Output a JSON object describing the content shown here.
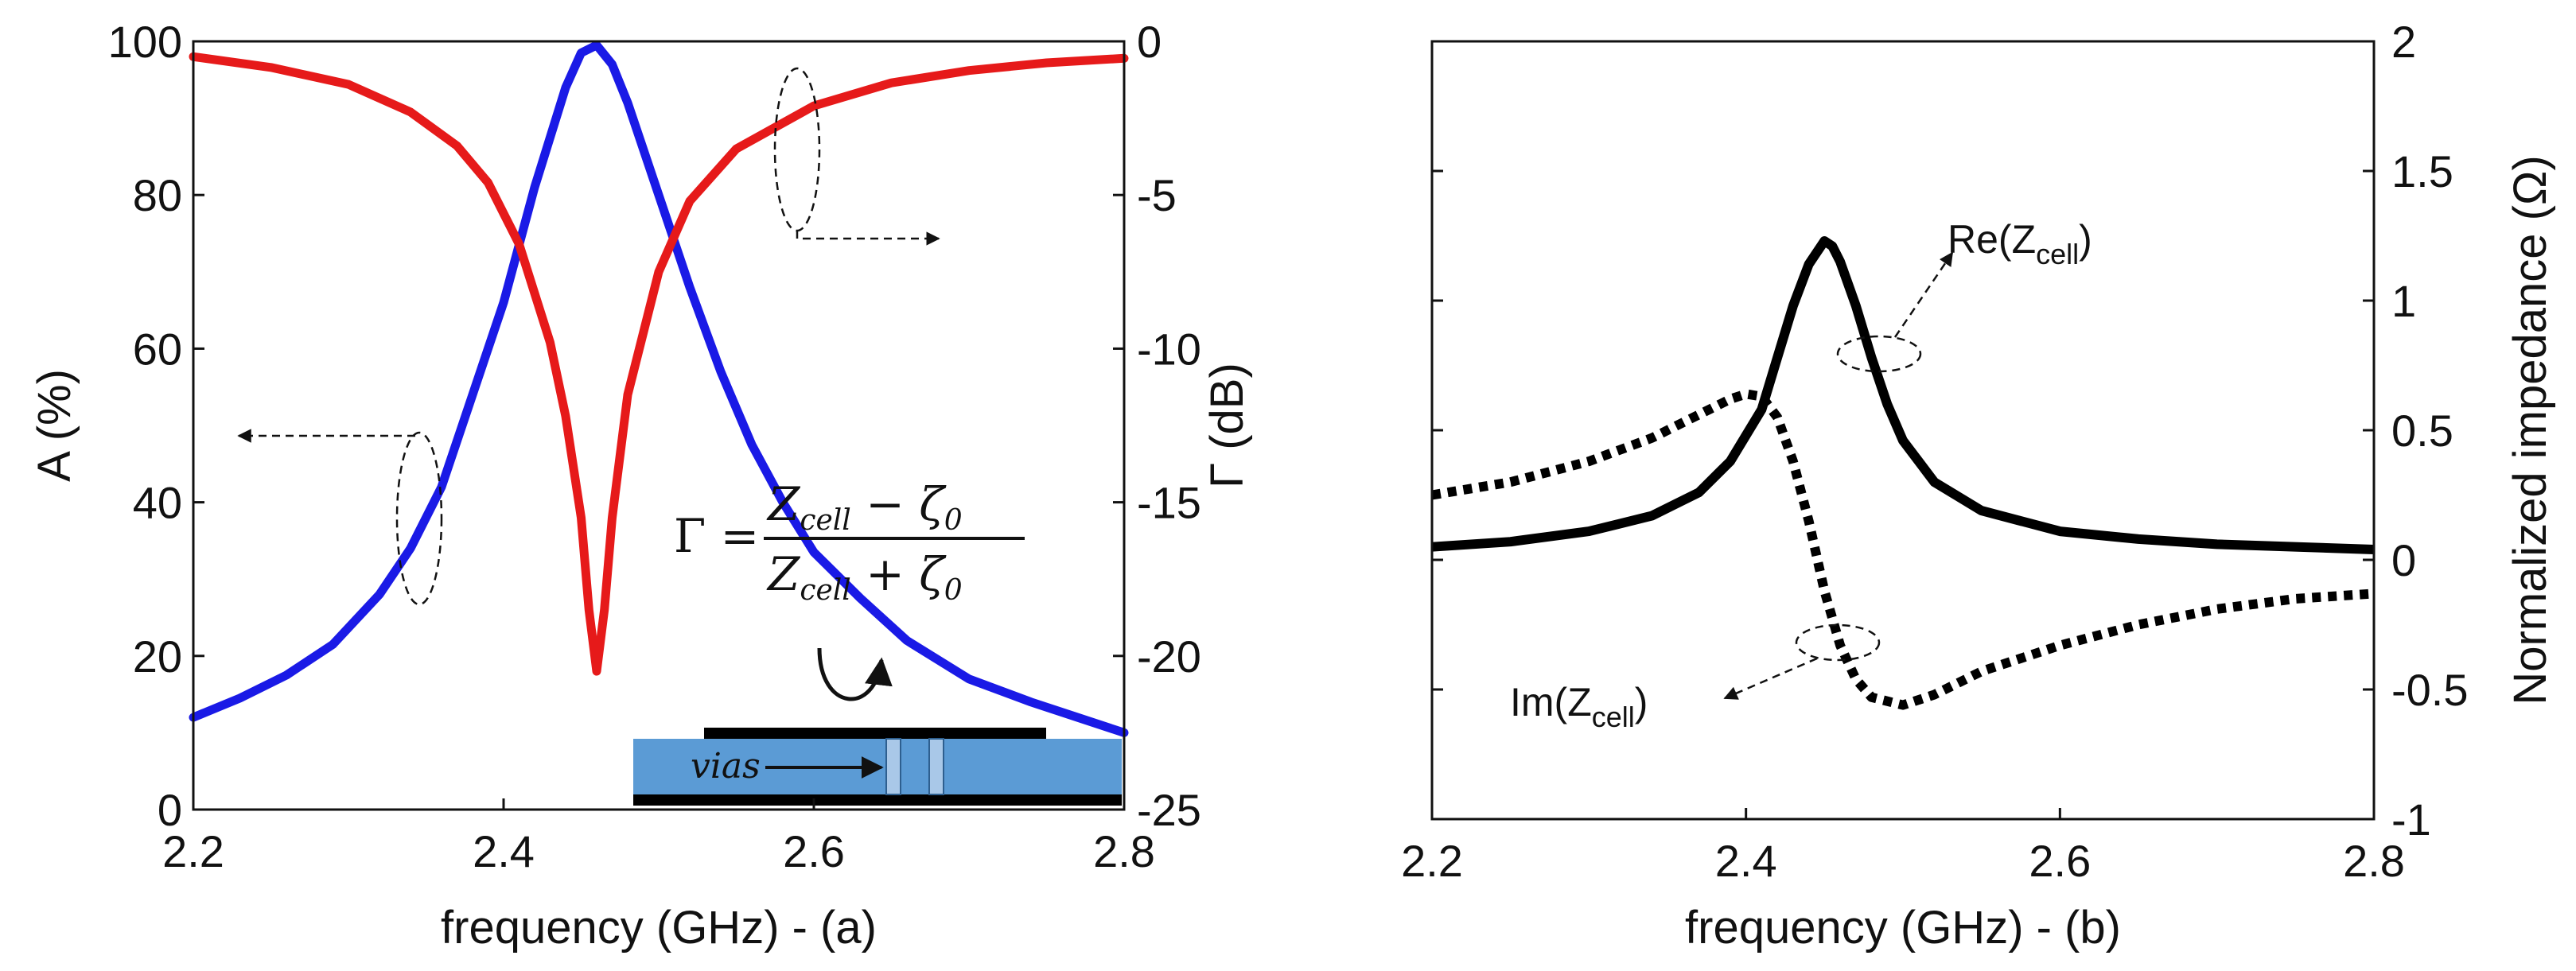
{
  "chart_data": [
    {
      "type": "line",
      "panel_label": "(a)",
      "xlabel": "frequency (GHz)  - (a)",
      "ylabel_left": "A (%)",
      "ylabel_right": "Γ (dB)",
      "xlim": [
        2.2,
        2.8
      ],
      "ylim_left": [
        0,
        100
      ],
      "ylim_right": [
        -25,
        0
      ],
      "x_ticks": [
        "2.2",
        "2.4",
        "2.6",
        "2.8"
      ],
      "y_ticks_left": [
        "0",
        "20",
        "40",
        "60",
        "80",
        "100"
      ],
      "y_ticks_right": [
        "-25",
        "-20",
        "-15",
        "-10",
        "-5",
        "0"
      ],
      "series": [
        {
          "name": "A",
          "axis": "left",
          "color": "#1a1ae6",
          "style": "solid",
          "x": [
            2.2,
            2.23,
            2.26,
            2.29,
            2.32,
            2.34,
            2.36,
            2.38,
            2.4,
            2.42,
            2.44,
            2.45,
            2.46,
            2.47,
            2.48,
            2.5,
            2.52,
            2.54,
            2.56,
            2.58,
            2.6,
            2.63,
            2.66,
            2.7,
            2.74,
            2.8
          ],
          "values": [
            12,
            14.5,
            17.5,
            21.5,
            28,
            34,
            42,
            54,
            66,
            81,
            94,
            98.5,
            99.5,
            97,
            92,
            80,
            68,
            57,
            47.5,
            40,
            33.5,
            27.5,
            22,
            17,
            14,
            10
          ]
        },
        {
          "name": "Γ",
          "axis": "right",
          "color": "#e61a1a",
          "style": "solid",
          "x": [
            2.2,
            2.25,
            2.3,
            2.34,
            2.37,
            2.39,
            2.41,
            2.43,
            2.44,
            2.45,
            2.455,
            2.46,
            2.465,
            2.47,
            2.48,
            2.5,
            2.52,
            2.55,
            2.6,
            2.65,
            2.7,
            2.75,
            2.8
          ],
          "values": [
            -0.5,
            -0.85,
            -1.4,
            -2.3,
            -3.4,
            -4.6,
            -6.6,
            -9.8,
            -12.2,
            -15.5,
            -18.5,
            -20.5,
            -18.5,
            -15.5,
            -11.5,
            -7.5,
            -5.2,
            -3.5,
            -2.1,
            -1.35,
            -0.95,
            -0.7,
            -0.55
          ]
        }
      ],
      "annotations": {
        "formula_lhs": "Γ =",
        "formula_num": "Z",
        "formula_num_sub": "cell",
        "formula_num_rest": " − ζ",
        "formula_num_sub2": "0",
        "formula_den": "Z",
        "formula_den_sub": "cell",
        "formula_den_rest": " + ζ",
        "formula_den_sub2": "0",
        "inset_label": "vias"
      },
      "colors": {
        "substrate": "#5b9bd5",
        "via": "#a9c8e8",
        "metal": "#000000"
      }
    },
    {
      "type": "line",
      "panel_label": "(b)",
      "xlabel": "frequency (GHz) - (b)",
      "ylabel_right": "Normalized impedance  (Ω)",
      "xlim": [
        2.2,
        2.8
      ],
      "ylim": [
        -1,
        2
      ],
      "x_ticks": [
        "2.2",
        "2.4",
        "2.6",
        "2.8"
      ],
      "y_ticks_right": [
        "-1",
        "-0.5",
        "0",
        "0.5",
        "1",
        "1.5",
        "2"
      ],
      "series": [
        {
          "name": "Re(Z_cell)",
          "color": "#000000",
          "style": "solid",
          "x": [
            2.2,
            2.25,
            2.3,
            2.34,
            2.37,
            2.39,
            2.41,
            2.42,
            2.43,
            2.44,
            2.45,
            2.455,
            2.46,
            2.47,
            2.48,
            2.49,
            2.5,
            2.52,
            2.55,
            2.6,
            2.65,
            2.7,
            2.8
          ],
          "values": [
            0.05,
            0.07,
            0.11,
            0.17,
            0.26,
            0.38,
            0.58,
            0.78,
            0.98,
            1.14,
            1.23,
            1.21,
            1.15,
            0.98,
            0.78,
            0.6,
            0.46,
            0.3,
            0.19,
            0.11,
            0.08,
            0.06,
            0.04
          ]
        },
        {
          "name": "Im(Z_cell)",
          "color": "#000000",
          "style": "dotted",
          "x": [
            2.2,
            2.25,
            2.3,
            2.34,
            2.37,
            2.39,
            2.4,
            2.41,
            2.42,
            2.43,
            2.44,
            2.45,
            2.46,
            2.47,
            2.48,
            2.5,
            2.52,
            2.55,
            2.6,
            2.65,
            2.7,
            2.75,
            2.8
          ],
          "values": [
            0.25,
            0.3,
            0.38,
            0.47,
            0.56,
            0.62,
            0.64,
            0.63,
            0.55,
            0.38,
            0.15,
            -0.12,
            -0.33,
            -0.46,
            -0.53,
            -0.56,
            -0.52,
            -0.43,
            -0.33,
            -0.25,
            -0.19,
            -0.15,
            -0.13
          ]
        }
      ],
      "annotations": {
        "re_label": "Re(Z",
        "im_label": "Im(Z",
        "sub": "cell",
        "close": ")"
      }
    }
  ]
}
